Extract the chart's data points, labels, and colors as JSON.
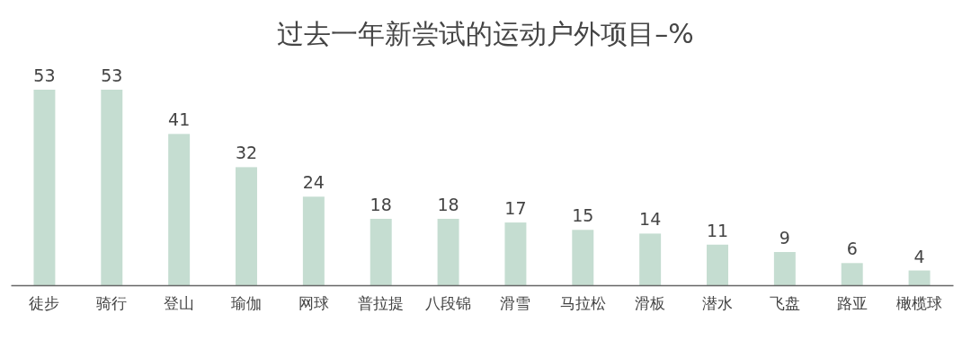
{
  "chart_data": {
    "type": "bar",
    "title": "过去一年新尝试的运动户外项目–%",
    "categories": [
      "徒步",
      "骑行",
      "登山",
      "瑜伽",
      "网球",
      "普拉提",
      "八段锦",
      "滑雪",
      "马拉松",
      "滑板",
      "潜水",
      "飞盘",
      "路亚",
      "橄榄球"
    ],
    "values": [
      53,
      53,
      41,
      32,
      24,
      18,
      18,
      17,
      15,
      14,
      11,
      9,
      6,
      4
    ],
    "color": "#c5ddd1",
    "data_labels": true
  }
}
